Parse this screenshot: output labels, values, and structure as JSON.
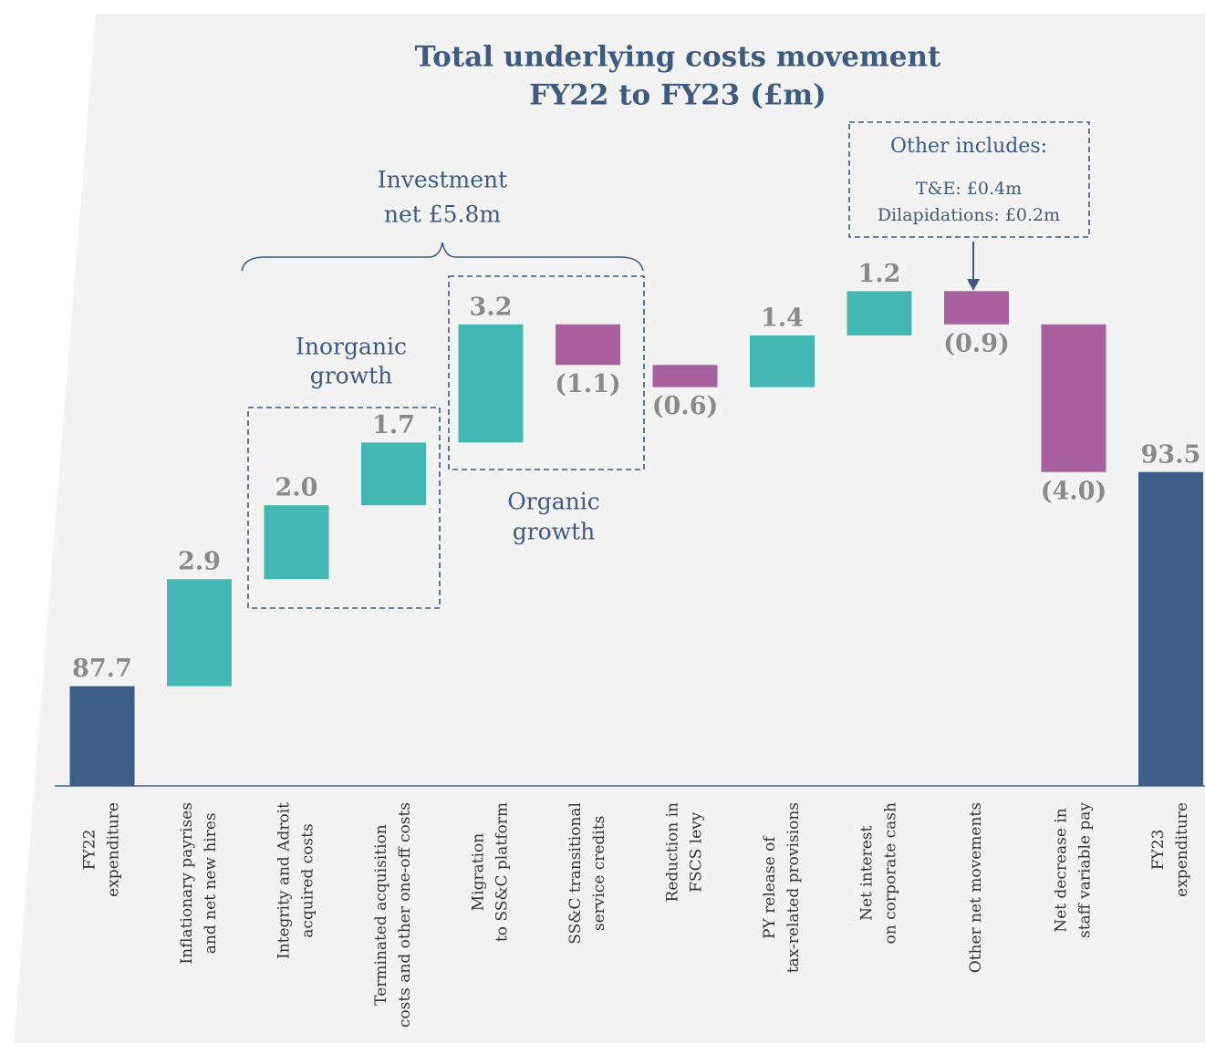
{
  "chart_data": {
    "type": "waterfall",
    "title": [
      "Total underlying costs movement",
      "FY22 to FY23 (£m)"
    ],
    "categories": [
      [
        "FY22",
        "expenditure"
      ],
      [
        "Inflationary payrises",
        "and net new hires"
      ],
      [
        "Integrity and Adroit",
        "acquired costs"
      ],
      [
        "Terminated acquisition",
        "costs and other one-off costs"
      ],
      [
        "Migration",
        "to SS&C platform"
      ],
      [
        "SS&C transitional",
        "service credits"
      ],
      [
        "Reduction in",
        "FSCS levy"
      ],
      [
        "PY release of",
        "tax-related provisions"
      ],
      [
        "Net interest",
        "on corporate cash"
      ],
      [
        "Other net movements"
      ],
      [
        "Net decrease in",
        "staff variable pay"
      ],
      [
        "FY23",
        "expenditure"
      ]
    ],
    "values": [
      87.7,
      2.9,
      2.0,
      1.7,
      3.2,
      -1.1,
      -0.6,
      1.4,
      1.2,
      -0.9,
      -4.0,
      93.5
    ],
    "value_labels": [
      "87.7",
      "2.9",
      "2.0",
      "1.7",
      "3.2",
      "(1.1)",
      "(0.6)",
      "1.4",
      "1.2",
      "(0.9)",
      "(4.0)",
      "93.5"
    ],
    "is_total": [
      true,
      false,
      false,
      false,
      false,
      false,
      false,
      false,
      false,
      false,
      false,
      true
    ],
    "colors": {
      "total": "#3b5d88",
      "increase": "#43b8b2",
      "decrease": "#a8609f"
    },
    "ylim": [
      85,
      100
    ],
    "grid": false,
    "annotations": {
      "investment": [
        "Investment",
        "net £5.8m"
      ],
      "inorganic": [
        "Inorganic",
        "growth"
      ],
      "organic": [
        "Organic",
        "growth"
      ],
      "other": [
        "Other includes:",
        "T&E:  £0.4m",
        "Dilapidations: £0.2m"
      ]
    }
  }
}
